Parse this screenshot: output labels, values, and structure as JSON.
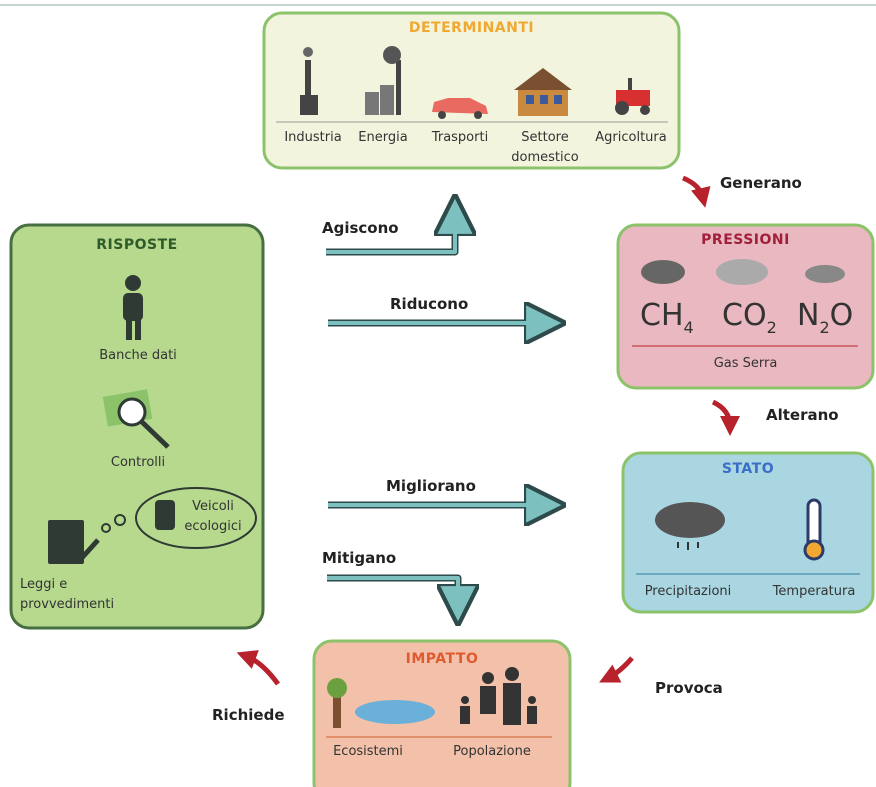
{
  "boxes": {
    "determinanti": {
      "title": "DETERMINANTI",
      "items": [
        "Industria",
        "Energia",
        "Trasporti",
        "Settore domestico",
        "Agricoltura"
      ]
    },
    "risposte": {
      "title": "RISPOSTE",
      "items": [
        "Banche dati",
        "Controlli",
        "Veicoli ecologici",
        "Leggi e provvedimenti"
      ]
    },
    "pressioni": {
      "title": "PRESSIONI",
      "formulas": [
        {
          "main": "CH",
          "sub": "4"
        },
        {
          "main": "CO",
          "sub": "2"
        },
        {
          "main": "N",
          "sub": "2",
          "tail": "O"
        }
      ],
      "caption": "Gas Serra"
    },
    "stato": {
      "title": "STATO",
      "items": [
        "Precipitazioni",
        "Temperatura"
      ]
    },
    "impatto": {
      "title": "IMPATTO",
      "items": [
        "Ecosistemi",
        "Popolazione"
      ]
    }
  },
  "arrows": [
    "Generano",
    "Agiscono",
    "Riducono",
    "Alterano",
    "Migliorano",
    "Mitigano",
    "Provoca",
    "Richiede"
  ]
}
